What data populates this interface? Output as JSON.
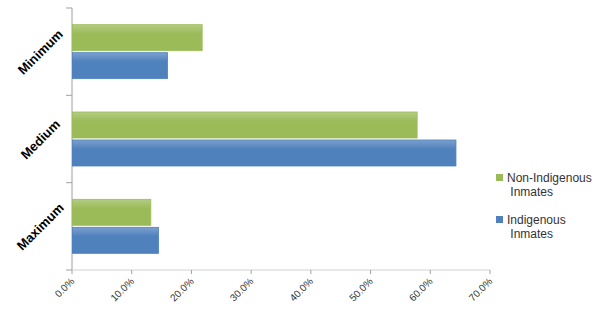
{
  "chart_data": {
    "type": "bar",
    "orientation": "horizontal",
    "legend": "right",
    "grid": false,
    "categories": [
      "Minimum",
      "Medium",
      "Maximum"
    ],
    "series": [
      {
        "name": "Non-Indigenous Inmates",
        "color": "#9bbb59",
        "values": [
          21.8,
          57.8,
          13.2
        ]
      },
      {
        "name": "Indigenous Inmates",
        "color": "#4f81bd",
        "values": [
          16.0,
          64.3,
          14.5
        ]
      }
    ],
    "xlim": [
      0,
      70
    ],
    "xticks": [
      {
        "value": 0,
        "label": "0.0%"
      },
      {
        "value": 10,
        "label": "10.0%"
      },
      {
        "value": 20,
        "label": "20.0%"
      },
      {
        "value": 30,
        "label": "30.0%"
      },
      {
        "value": 40,
        "label": "40.0%"
      },
      {
        "value": 50,
        "label": "50.0%"
      },
      {
        "value": 60,
        "label": "60.0%"
      },
      {
        "value": 70,
        "label": "70.0%"
      }
    ]
  }
}
